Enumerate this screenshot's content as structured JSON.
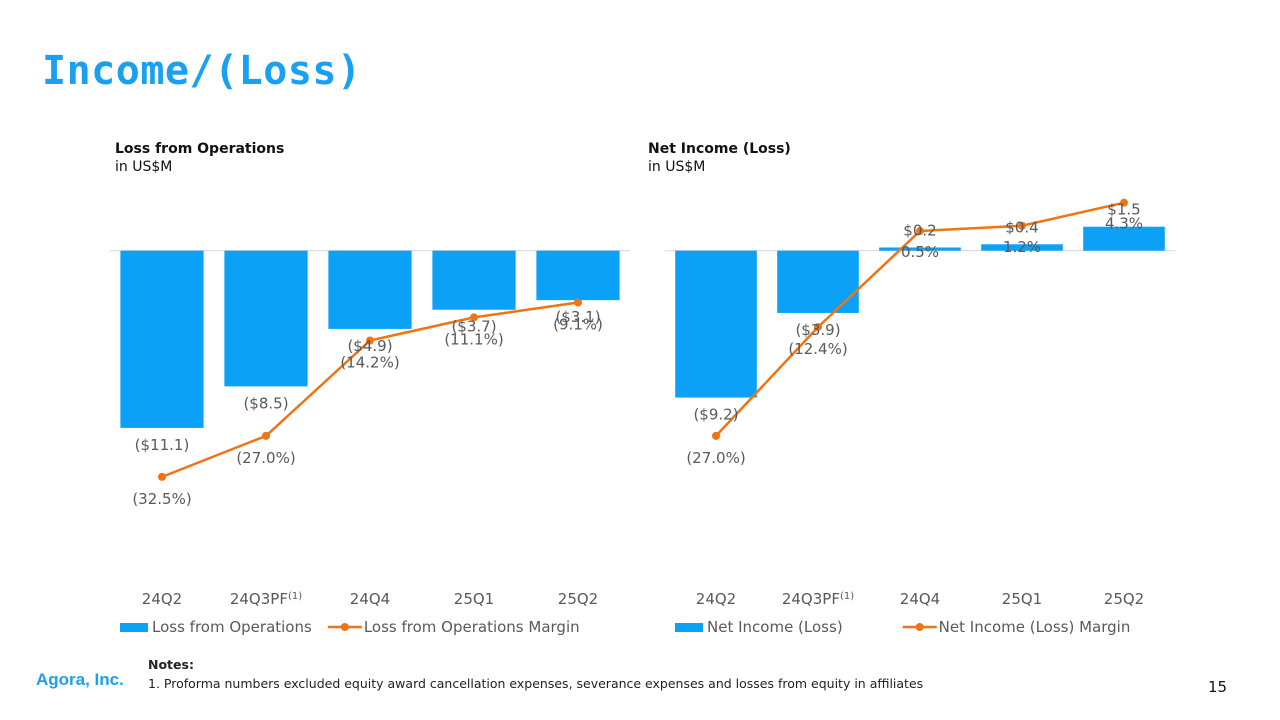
{
  "title": "Income/(Loss)",
  "colors": {
    "bar": "#0aa1f6",
    "line": "#f07414",
    "title": "#1aa0f0"
  },
  "chart_data": [
    {
      "type": "bar+line",
      "title": "Loss from Operations",
      "subtitle": "in US$M",
      "categories": [
        "24Q2",
        "24Q3PF",
        "24Q4",
        "25Q1",
        "25Q2"
      ],
      "category_superscripts": [
        "",
        "(1)",
        "",
        "",
        ""
      ],
      "bars": {
        "name": "Loss from Operations",
        "values": [
          -11.1,
          -8.5,
          -4.9,
          -3.7,
          -3.1
        ],
        "labels": [
          "($11.1)",
          "($8.5)",
          "($4.9)",
          "($3.7)",
          "($3.1)"
        ]
      },
      "line": {
        "name": "Loss from Operations Margin",
        "values": [
          -32.5,
          -27.0,
          -14.2,
          -11.1,
          -9.1
        ],
        "labels": [
          "(32.5%)",
          "(27.0%)",
          "(14.2%)",
          "(11.1%)",
          "(9.1%)"
        ]
      },
      "bar_ylim": [
        -20,
        3.8
      ],
      "line_ylim": [
        -45,
        6
      ],
      "legend": "bottom"
    },
    {
      "type": "bar+line",
      "title": "Net Income (Loss)",
      "subtitle": "in US$M",
      "categories": [
        "24Q2",
        "24Q3PF",
        "24Q4",
        "25Q1",
        "25Q2"
      ],
      "category_superscripts": [
        "",
        "(1)",
        "",
        "",
        ""
      ],
      "bars": {
        "name": "Net Income (Loss)",
        "values": [
          -9.2,
          -3.9,
          0.2,
          0.4,
          1.5
        ],
        "labels": [
          "($9.2)",
          "($3.9)",
          "$0.2",
          "$0.4",
          "$1.5"
        ]
      },
      "line": {
        "name": "Net Income (Loss) Margin",
        "values": [
          -27.0,
          -12.4,
          0.5,
          1.2,
          4.3
        ],
        "labels": [
          "(27.0%)",
          "(12.4%)",
          "0.5%",
          "1.2%",
          "4.3%"
        ]
      },
      "bar_ylim": [
        -20,
        3.8
      ],
      "line_ylim": [
        -45,
        6
      ],
      "legend": "bottom"
    }
  ],
  "notes": {
    "title": "Notes:",
    "items": [
      "1. Proforma numbers excluded equity award cancellation expenses, severance expenses and losses from equity in affiliates"
    ]
  },
  "footer": {
    "company": "Agora, Inc.",
    "page_number": "15"
  }
}
